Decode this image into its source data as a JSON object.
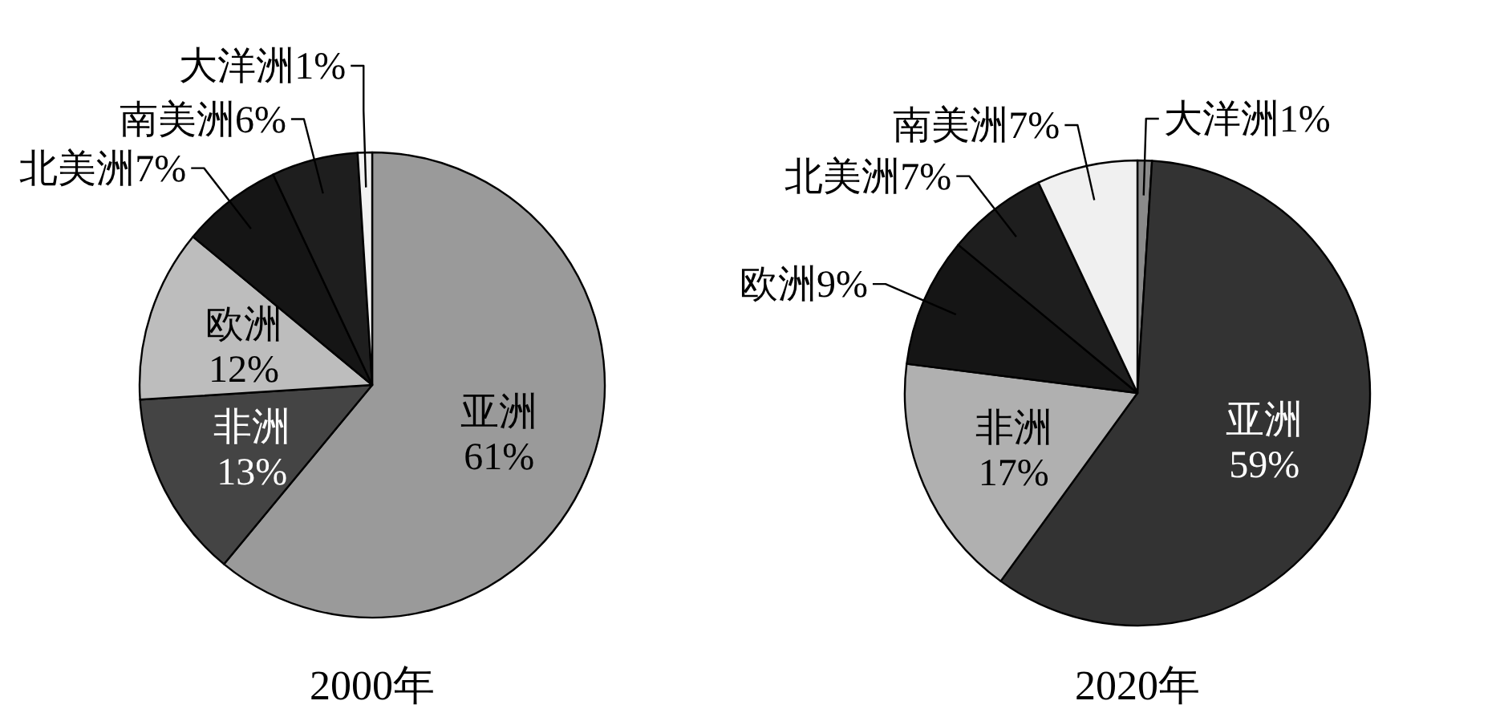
{
  "chart_data": [
    {
      "type": "pie",
      "title": "2000年",
      "categories": [
        "亚洲",
        "非洲",
        "欧洲",
        "北美洲",
        "南美洲",
        "大洋洲"
      ],
      "values": [
        61,
        13,
        12,
        7,
        6,
        1
      ],
      "value_labels": [
        "61%",
        "13%",
        "12%",
        "7%",
        "6%",
        "1%"
      ],
      "colors": [
        "#9a9a9a",
        "#444444",
        "#bdbdbd",
        "#151515",
        "#1e1e1e",
        "#f2f2f2"
      ]
    },
    {
      "type": "pie",
      "title": "2020年",
      "categories": [
        "大洋洲",
        "亚洲",
        "非洲",
        "欧洲",
        "北美洲",
        "南美洲"
      ],
      "values": [
        1,
        59,
        17,
        9,
        7,
        7
      ],
      "value_labels": [
        "1%",
        "59%",
        "17%",
        "9%",
        "7%",
        "7%"
      ],
      "colors": [
        "#8a8a8a",
        "#333333",
        "#b0b0b0",
        "#151515",
        "#1e1e1e",
        "#f0f0f0"
      ]
    }
  ]
}
